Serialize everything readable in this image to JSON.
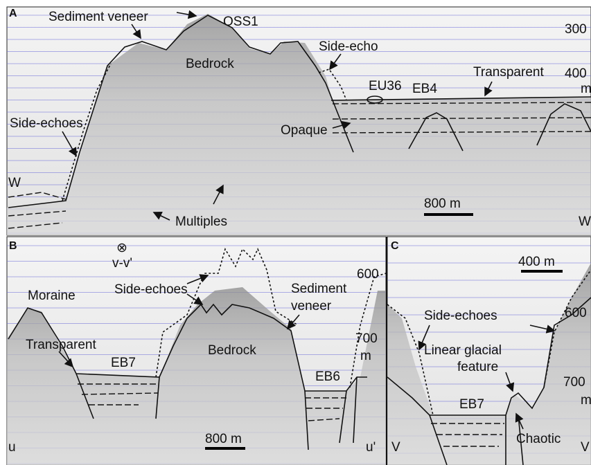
{
  "panel_a": {
    "label": "A",
    "texts": [
      "Sediment veneer",
      "OSS1",
      "300",
      "Bedrock",
      "Side-echo",
      "Transparent",
      "400",
      "m",
      "EU36",
      "EB4",
      "Side-echoes",
      "Opaque",
      "W",
      "800 m",
      "Multiples",
      "W"
    ]
  },
  "panel_b": {
    "label": "B",
    "texts": [
      "⊗",
      "v-v'",
      "Moraine",
      "Side-echoes",
      "Sediment",
      "veneer",
      "600",
      "700",
      "m",
      "Transparent",
      "Bedrock",
      "EB7",
      "EB6",
      "800 m",
      "u",
      "u'"
    ]
  },
  "panel_c": {
    "label": "C",
    "texts": [
      "400 m",
      "Side-echoes",
      "600",
      "Linear glacial",
      "feature",
      "700",
      "m",
      "EB7",
      "Chaotic",
      "V",
      "V"
    ]
  }
}
